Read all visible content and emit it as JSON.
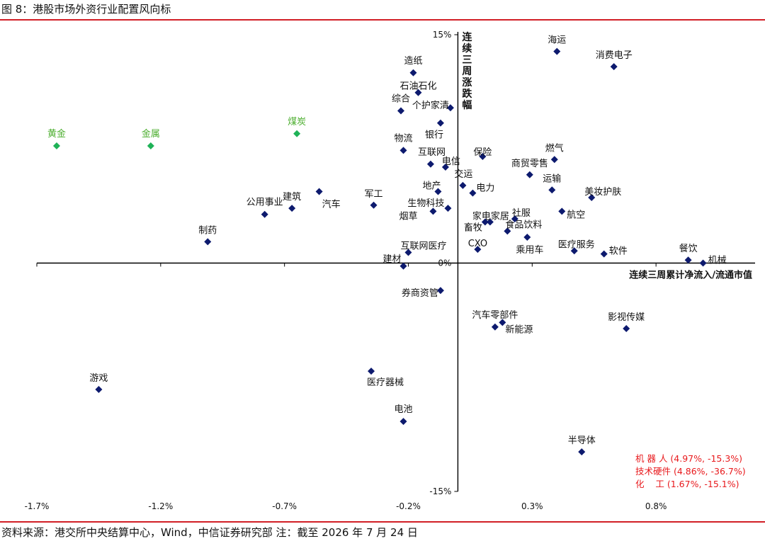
{
  "figure_title": "图 8：港股市场外资行业配置风向标",
  "source": "资料来源：港交所中央结算中心，Wind，中信证券研究部 注：截至 2026 年 7 月 24 日",
  "colors": {
    "rule": "#d21f26",
    "point_default": "#0d1a6e",
    "point_highlight": "#1fb257",
    "label_highlight": "#4cae2f",
    "note": "#e8191c"
  },
  "chart_data": {
    "type": "scatter",
    "xlabel": "连续三周累计净流入/流通市值",
    "ylabel": "连续三周涨跌幅",
    "xlim": [
      -1.7,
      1.2
    ],
    "ylim": [
      -15,
      15
    ],
    "x_ticks": [
      "-1.7%",
      "-1.2%",
      "-0.7%",
      "-0.2%",
      "0.3%",
      "0.8%"
    ],
    "x_tick_values": [
      -1.7,
      -1.2,
      -0.7,
      -0.2,
      0.3,
      0.8
    ],
    "y_tick_labels": [
      "15%",
      "0%",
      "-15%"
    ],
    "y_tick_values": [
      15,
      0,
      -15
    ],
    "points": [
      {
        "name": "黄金",
        "x": -1.62,
        "y": 7.7,
        "highlight": true
      },
      {
        "name": "金属",
        "x": -1.24,
        "y": 7.7,
        "highlight": true
      },
      {
        "name": "煤炭",
        "x": -0.65,
        "y": 8.5,
        "highlight": true
      },
      {
        "name": "造纸",
        "x": -0.18,
        "y": 12.5
      },
      {
        "name": "石油石化",
        "x": -0.16,
        "y": 11.2
      },
      {
        "name": "综合",
        "x": -0.23,
        "y": 10.0
      },
      {
        "name": "个护家清",
        "x": -0.03,
        "y": 10.2
      },
      {
        "name": "银行",
        "x": -0.07,
        "y": 9.2
      },
      {
        "name": "物流",
        "x": -0.22,
        "y": 7.4
      },
      {
        "name": "互联网",
        "x": -0.11,
        "y": 6.5
      },
      {
        "name": "电信",
        "x": -0.05,
        "y": 6.3
      },
      {
        "name": "保险",
        "x": 0.1,
        "y": 7.0
      },
      {
        "name": "燃气",
        "x": 0.39,
        "y": 6.8
      },
      {
        "name": "商贸零售",
        "x": 0.29,
        "y": 5.8
      },
      {
        "name": "交运",
        "x": 0.02,
        "y": 5.1
      },
      {
        "name": "电力",
        "x": 0.06,
        "y": 4.6
      },
      {
        "name": "运输",
        "x": 0.38,
        "y": 4.8
      },
      {
        "name": "美妆护肤",
        "x": 0.54,
        "y": 4.3
      },
      {
        "name": "地产",
        "x": -0.08,
        "y": 4.7
      },
      {
        "name": "生物科技",
        "x": -0.04,
        "y": 3.6
      },
      {
        "name": "烟草",
        "x": -0.1,
        "y": 3.4
      },
      {
        "name": "家电家居",
        "x": 0.13,
        "y": 2.7
      },
      {
        "name": "畜牧",
        "x": 0.11,
        "y": 2.7
      },
      {
        "name": "社服",
        "x": 0.23,
        "y": 2.9
      },
      {
        "name": "航空",
        "x": 0.42,
        "y": 3.4
      },
      {
        "name": "食品饮料",
        "x": 0.2,
        "y": 2.1
      },
      {
        "name": "乘用车",
        "x": 0.28,
        "y": 1.7
      },
      {
        "name": "军工",
        "x": -0.34,
        "y": 3.8
      },
      {
        "name": "汽车",
        "x": -0.56,
        "y": 4.7
      },
      {
        "name": "建筑",
        "x": -0.67,
        "y": 3.6
      },
      {
        "name": "公用事业",
        "x": -0.78,
        "y": 3.2
      },
      {
        "name": "制药",
        "x": -1.01,
        "y": 1.4
      },
      {
        "name": "CXO",
        "x": 0.08,
        "y": 0.9
      },
      {
        "name": "医疗服务",
        "x": 0.47,
        "y": 0.8
      },
      {
        "name": "软件",
        "x": 0.59,
        "y": 0.6
      },
      {
        "name": "餐饮",
        "x": 0.93,
        "y": 0.2
      },
      {
        "name": "机械",
        "x": 0.99,
        "y": 0.0
      },
      {
        "name": "互联网医疗",
        "x": -0.2,
        "y": 0.7
      },
      {
        "name": "建材",
        "x": -0.22,
        "y": -0.2
      },
      {
        "name": "海运",
        "x": 0.4,
        "y": 13.9
      },
      {
        "name": "消费电子",
        "x": 0.63,
        "y": 12.9
      },
      {
        "name": "券商资管",
        "x": -0.07,
        "y": -1.8
      },
      {
        "name": "汽车零部件",
        "x": 0.15,
        "y": -4.2
      },
      {
        "name": "新能源",
        "x": 0.18,
        "y": -3.9
      },
      {
        "name": "影视传媒",
        "x": 0.68,
        "y": -4.3
      },
      {
        "name": "游戏",
        "x": -1.45,
        "y": -8.3
      },
      {
        "name": "医疗器械",
        "x": -0.35,
        "y": -7.1
      },
      {
        "name": "电池",
        "x": -0.22,
        "y": -10.4
      },
      {
        "name": "半导体",
        "x": 0.5,
        "y": -12.4
      }
    ],
    "notes": [
      "机 器 人 (4.97%, -15.3%)",
      "技术硬件 (4.86%, -36.7%)",
      "化    工 (1.67%, -15.1%)"
    ]
  }
}
